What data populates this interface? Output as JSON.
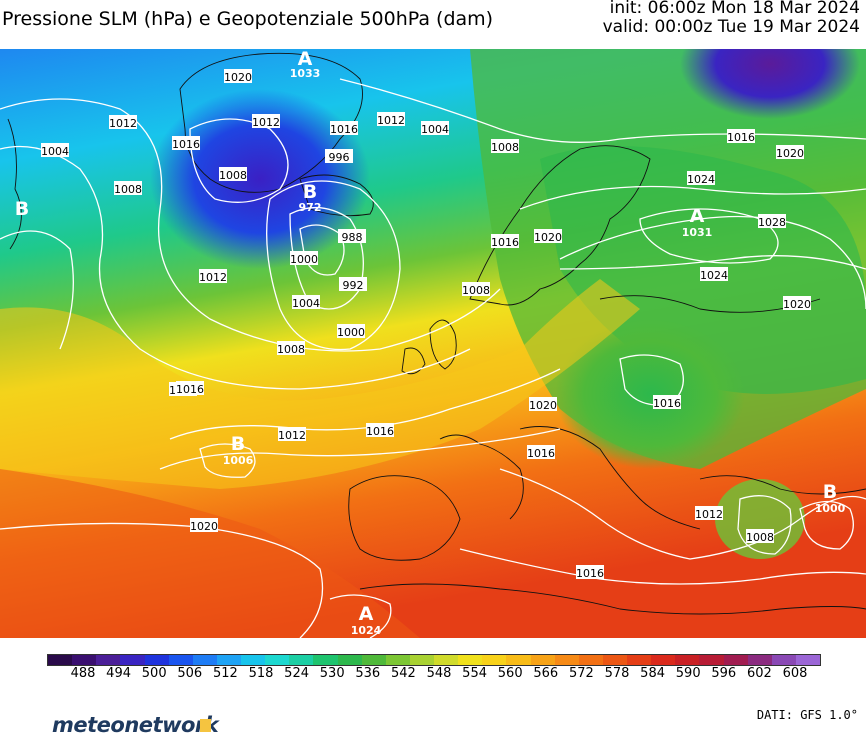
{
  "header": {
    "title": "Pressione SLM (hPa) e Geopotenziale 500hPa (dam)",
    "init": "init: 06:00z Mon 18 Mar 2024",
    "valid": "valid: 00:00z Tue 19 Mar 2024"
  },
  "map": {
    "isobar_labels": [
      "1020",
      "1012",
      "1016",
      "1004",
      "1008",
      "1012",
      "1016",
      "1012",
      "1004",
      "1008",
      "1016",
      "996",
      "1020",
      "1008",
      "1024",
      "1016",
      "1020",
      "1008",
      "1000",
      "988",
      "1028",
      "1012",
      "992",
      "1012",
      "1024",
      "1004",
      "1020",
      "1008",
      "1000",
      "1016",
      "1016",
      "1020",
      "1012",
      "1016",
      "1016",
      "1012",
      "1020",
      "1008",
      "1016"
    ],
    "pressure_centers": [
      {
        "letter": "A",
        "value": "1033"
      },
      {
        "letter": "B",
        "value": "972"
      },
      {
        "letter": "A",
        "value": "1031"
      },
      {
        "letter": "B",
        "value": "1006"
      },
      {
        "letter": "B",
        "value": "1000"
      },
      {
        "letter": "A",
        "value": "1024"
      }
    ]
  },
  "colorbar": {
    "ticks": [
      "488",
      "494",
      "500",
      "506",
      "512",
      "518",
      "524",
      "530",
      "536",
      "542",
      "548",
      "554",
      "560",
      "566",
      "572",
      "578",
      "584",
      "590",
      "596",
      "602",
      "608"
    ],
    "colors": [
      "#2a0a4a",
      "#3a0f70",
      "#4b1f98",
      "#3a24c2",
      "#1f33dd",
      "#1a55ef",
      "#1e7cf5",
      "#1ea3f5",
      "#18c4ec",
      "#1dd8d0",
      "#1ccfa4",
      "#1ec46e",
      "#2db84c",
      "#4fb93a",
      "#7cc634",
      "#a9d232",
      "#d0db2c",
      "#f0e11d",
      "#f8d21a",
      "#f8bc18",
      "#f7a317",
      "#f68a16",
      "#f27014",
      "#ec5714",
      "#e53e16",
      "#db2a1c",
      "#c92024",
      "#b81c35",
      "#a11c50",
      "#8b2b80",
      "#8a49b5",
      "#9b66d6"
    ]
  },
  "footer": {
    "brand": "meteonetwork",
    "source": "DATI: GFS 1.0°"
  }
}
